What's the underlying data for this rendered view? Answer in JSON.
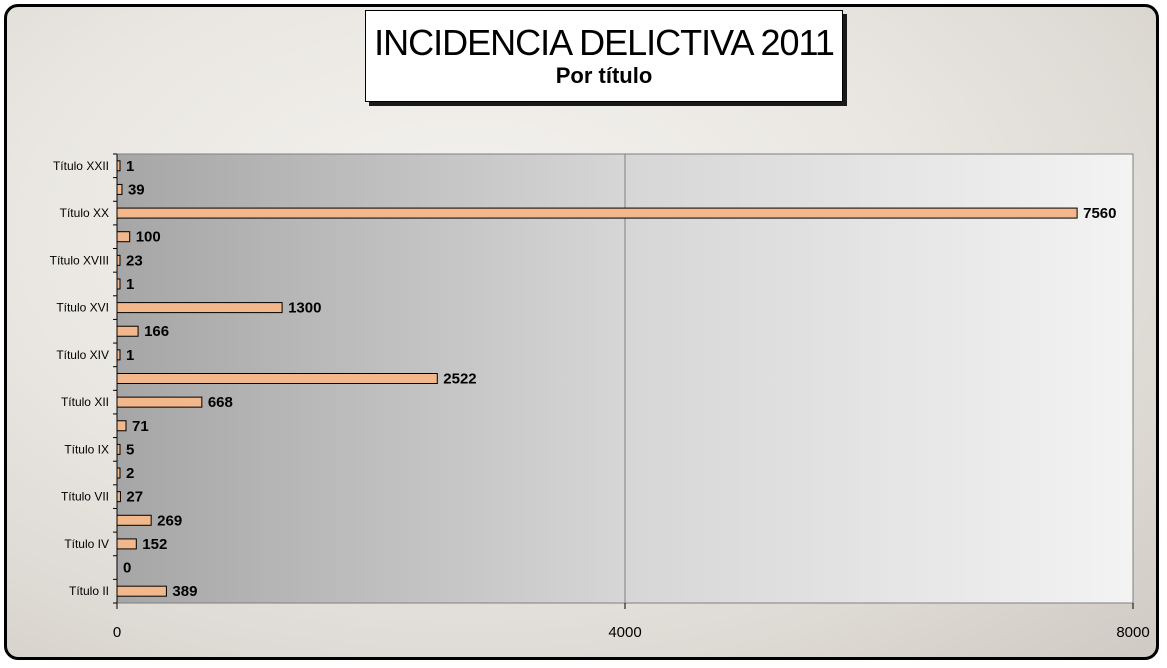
{
  "title": "INCIDENCIA DELICTIVA 2011",
  "subtitle": "Por título",
  "colors": {
    "bar_fill": "#f2b88c",
    "bar_stroke": "#000000",
    "plot_left": "#a9a9a9",
    "plot_right": "#f0f0f0"
  },
  "chart_data": {
    "type": "bar",
    "orientation": "horizontal",
    "title": "INCIDENCIA DELICTIVA 2011",
    "subtitle": "Por título",
    "categories": [
      "Título XXII",
      "",
      "Título XX",
      "",
      "Título XVIII",
      "",
      "Título XVI",
      "",
      "Título XIV",
      "",
      "Título XII",
      "",
      "Título IX",
      "",
      "Título VII",
      "",
      "Título IV",
      "",
      "Título II"
    ],
    "values": [
      1,
      39,
      7560,
      100,
      23,
      1,
      1300,
      166,
      1,
      2522,
      668,
      71,
      5,
      2,
      27,
      269,
      152,
      0,
      389
    ],
    "xlim": [
      0,
      8000
    ],
    "xticks": [
      0,
      4000,
      8000
    ],
    "grid": true,
    "legend": "none"
  }
}
